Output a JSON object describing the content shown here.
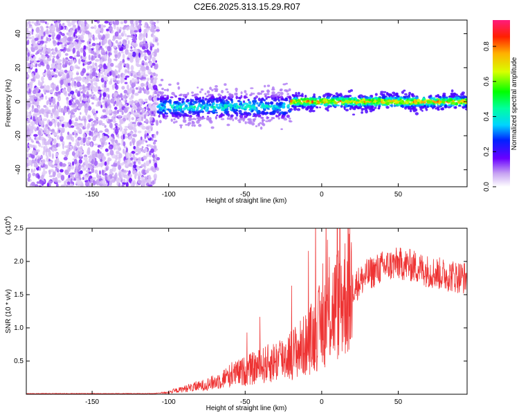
{
  "figure_title": "C2E6.2025.313.15.29.R07",
  "chart_data": [
    {
      "type": "heatmap",
      "title": "C2E6.2025.313.15.29.R07",
      "xlabel": "Height of straight line (km)",
      "ylabel": "Frequency (Hz)",
      "xlim": [
        -193,
        95
      ],
      "ylim": [
        -50,
        48
      ],
      "x_ticks": [
        -150,
        -100,
        -50,
        0,
        50
      ],
      "y_ticks": [
        -40,
        -20,
        0,
        20,
        40
      ],
      "colorbar": {
        "label": "Normalized spectral amplitude",
        "range": [
          0,
          0.95
        ],
        "ticks": [
          0.0,
          0.2,
          0.4,
          0.6,
          0.8
        ],
        "tick_labels": [
          "0.0",
          "0.2",
          "0.4",
          "0.6",
          "0.8"
        ]
      },
      "regions": [
        {
          "name": "scattered noise",
          "x_range": [
            -193,
            -107
          ],
          "freq_range": [
            -50,
            48
          ],
          "amplitude_range": [
            0.05,
            0.15
          ]
        },
        {
          "name": "signal band",
          "x_range": [
            -107,
            -20
          ],
          "center_hz": -3,
          "width_hz": 14,
          "amplitude_range": [
            0.1,
            0.5
          ]
        },
        {
          "name": "signal band",
          "x_range": [
            -20,
            95
          ],
          "center_hz": 0,
          "width_hz": 6,
          "amplitude_range": [
            0.2,
            0.95
          ]
        }
      ]
    },
    {
      "type": "line",
      "xlabel": "Height of straight line (km)",
      "ylabel": "SNR (10 * v/v)",
      "y_multiplier": "(x10",
      "y_multiplier_exp": "4",
      "xlim": [
        -193,
        95
      ],
      "ylim": [
        0,
        2.5
      ],
      "x_ticks": [
        -150,
        -100,
        -50,
        0,
        50
      ],
      "y_ticks": [
        0.5,
        1.0,
        1.5,
        2.0,
        2.5
      ],
      "y_tick_labels": [
        "0.5",
        "1.0",
        "1.5",
        "2.0",
        "2.5"
      ],
      "color": "#ee3333",
      "series": [
        {
          "name": "SNR",
          "x": [
            -193,
            -150,
            -110,
            -100,
            -90,
            -80,
            -70,
            -60,
            -50,
            -40,
            -30,
            -20,
            -10,
            0,
            10,
            20,
            30,
            40,
            50,
            60,
            70,
            80,
            95
          ],
          "values": [
            0.01,
            0.01,
            0.01,
            0.03,
            0.08,
            0.12,
            0.18,
            0.28,
            0.35,
            0.42,
            0.5,
            0.6,
            0.75,
            1.05,
            1.35,
            1.6,
            1.8,
            1.92,
            1.97,
            1.93,
            1.85,
            1.8,
            1.75
          ]
        }
      ]
    }
  ]
}
